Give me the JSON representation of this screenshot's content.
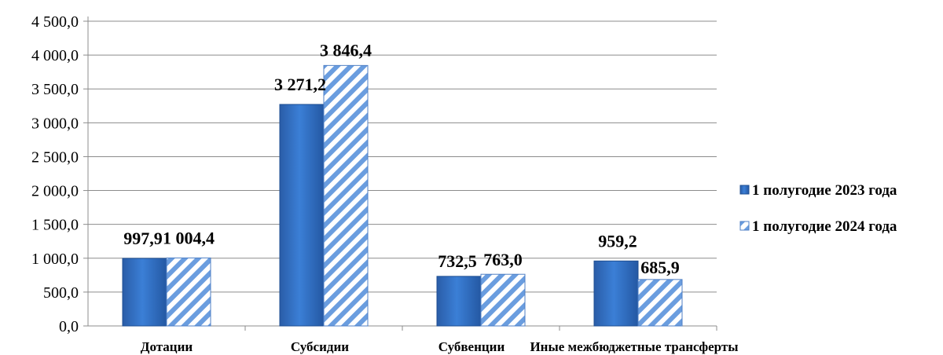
{
  "chart_data": {
    "type": "bar",
    "categories": [
      "Дотации",
      "Субсидии",
      "Субвенции",
      "Иные межбюджетные трансферты"
    ],
    "series": [
      {
        "name": "1 полугодие 2023 года",
        "values": [
          997.9,
          3271.2,
          732.5,
          959.2
        ],
        "labels": [
          "997,9",
          "3 271,2",
          "732,5",
          "959,2"
        ],
        "color": "#2f6fc0"
      },
      {
        "name": "1 полугодие 2024 года",
        "values": [
          1004.4,
          3846.4,
          763.0,
          685.9
        ],
        "labels": [
          "1 004,4",
          "3 846,4",
          "763,0",
          "685,9"
        ],
        "color": "#5b8fd6",
        "pattern": "diagonal-stripes"
      }
    ],
    "y_ticks": [
      "0,0",
      "500,0",
      "1 000,0",
      "1 500,0",
      "2 000,0",
      "2 500,0",
      "3 000,0",
      "3 500,0",
      "4 000,0",
      "4 500,0"
    ],
    "ylim": [
      0,
      4500
    ],
    "grid": true,
    "legend_position": "right"
  }
}
